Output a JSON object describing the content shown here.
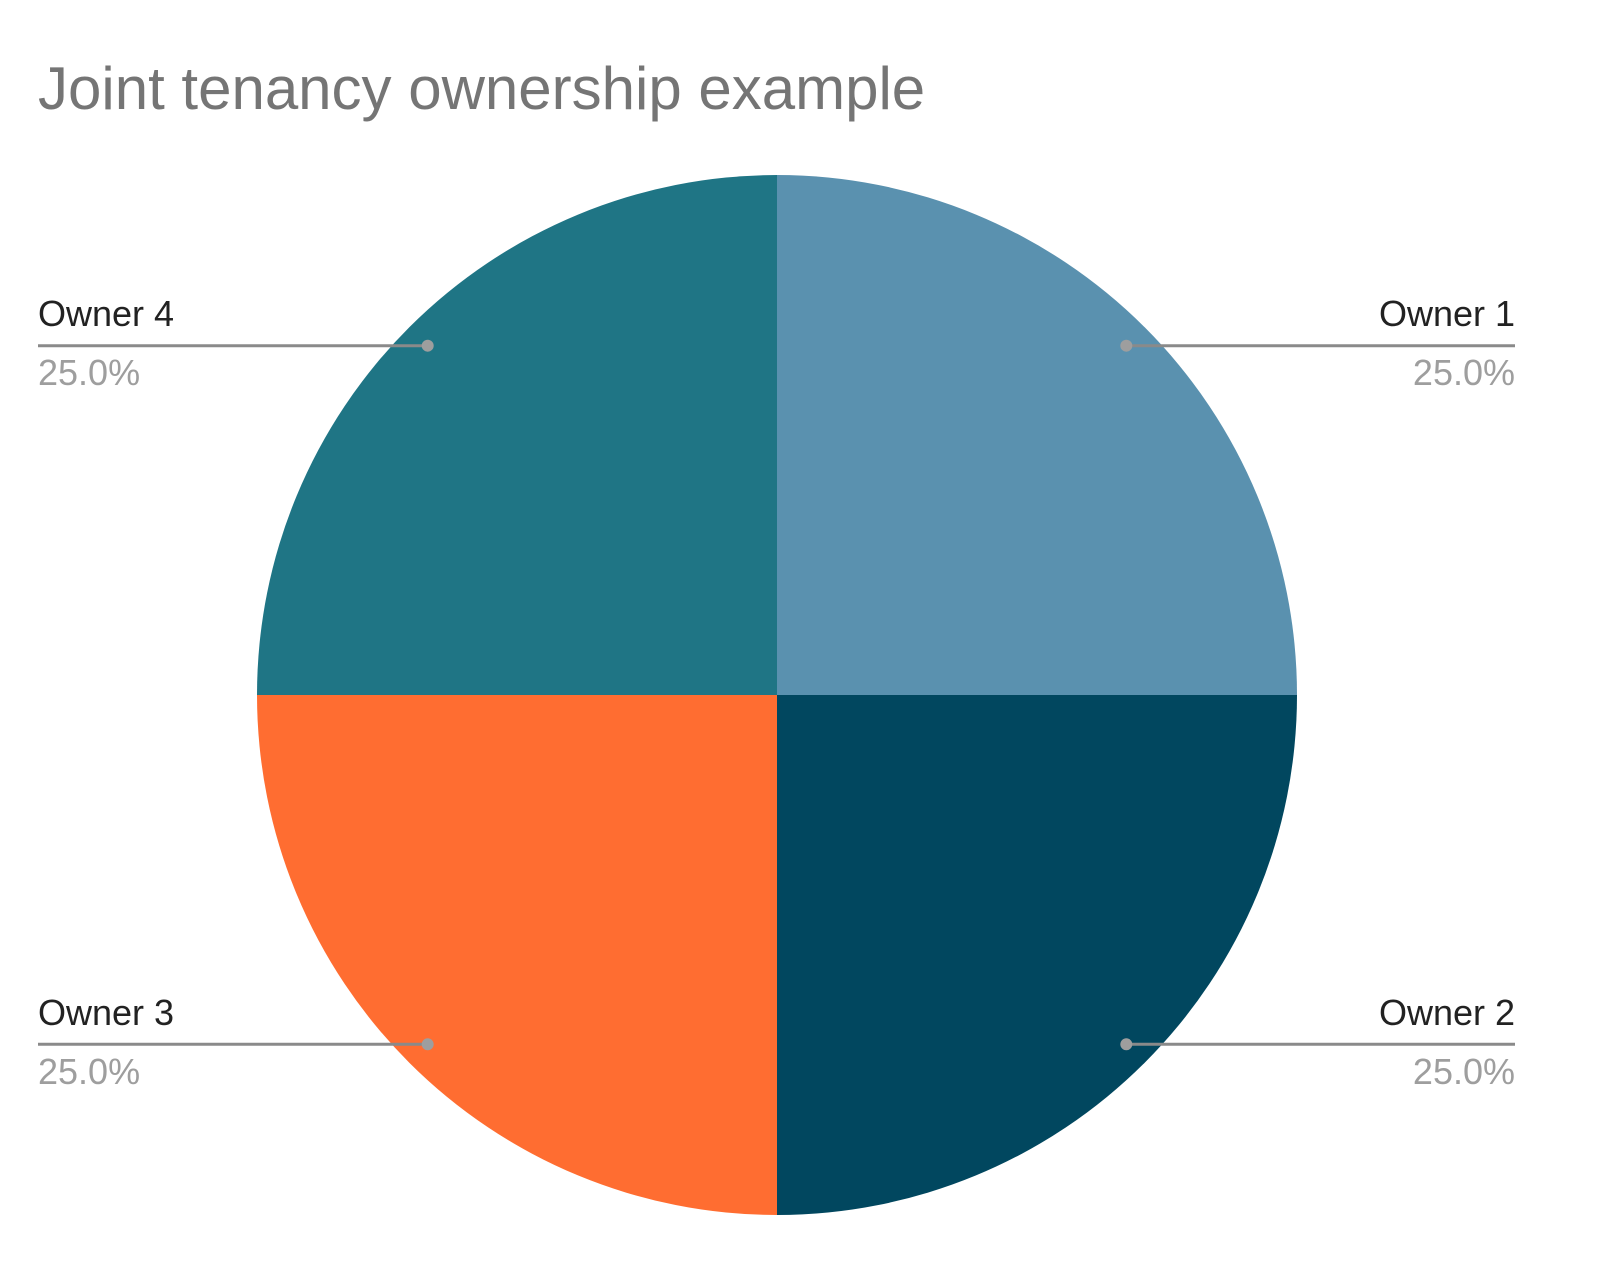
{
  "chart_data": {
    "type": "pie",
    "title": "Joint tenancy ownership example",
    "categories": [
      "Owner 1",
      "Owner 2",
      "Owner 3",
      "Owner 4"
    ],
    "values": [
      25,
      25,
      25,
      25
    ],
    "value_labels": [
      "25.0%",
      "25.0%",
      "25.0%",
      "25.0%"
    ],
    "colors": [
      "#5a91af",
      "#01475f",
      "#ff6d31",
      "#1f7585"
    ]
  }
}
